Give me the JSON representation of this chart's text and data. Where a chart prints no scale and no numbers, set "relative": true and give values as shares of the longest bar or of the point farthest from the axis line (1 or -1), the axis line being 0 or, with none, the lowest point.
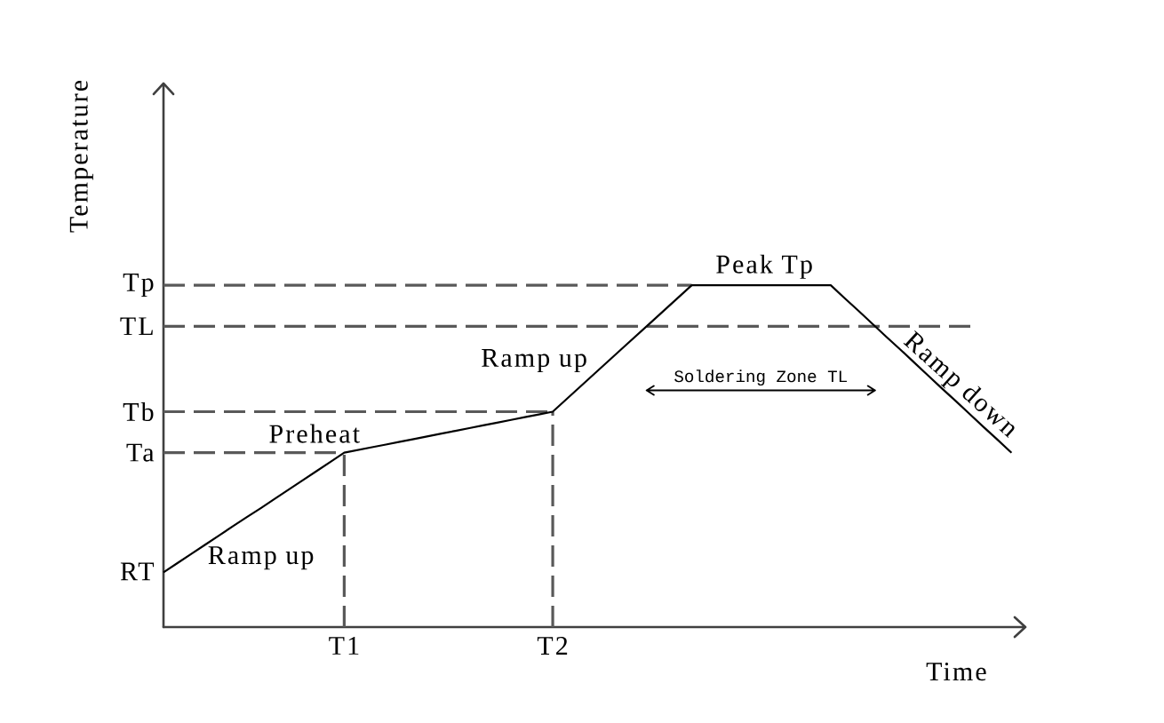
{
  "chart_data": {
    "type": "line",
    "relative": true,
    "xlabel": "Time",
    "ylabel": "Temperature",
    "categories": [
      null,
      null,
      null,
      null,
      null,
      null,
      null,
      null,
      null,
      null,
      null,
      null,
      null,
      "T1",
      null,
      null,
      null,
      null,
      null,
      null,
      null,
      null,
      null,
      null,
      null,
      null,
      null,
      null,
      "T2",
      null,
      null,
      null,
      null,
      null,
      null,
      null,
      null,
      null,
      null,
      null,
      null,
      null,
      null,
      null,
      null,
      null,
      null,
      null,
      null,
      null,
      null,
      null,
      null,
      null,
      null,
      null,
      null,
      null,
      null,
      null,
      null,
      null
    ],
    "series": [
      {
        "color": "#000000",
        "line_style": "solid",
        "values": [
          0.16,
          0.187,
          0.214,
          0.241,
          0.268,
          0.295,
          0.322,
          0.348,
          0.375,
          0.402,
          0.429,
          0.456,
          0.483,
          0.51,
          0.518,
          0.526,
          0.534,
          0.542,
          0.55,
          0.558,
          0.566,
          0.574,
          0.582,
          0.59,
          0.598,
          0.606,
          0.614,
          0.622,
          0.63,
          0.667,
          0.704,
          0.741,
          0.778,
          0.815,
          0.852,
          0.889,
          0.926,
          0.963,
          1,
          1,
          1,
          1,
          1,
          1,
          1,
          1,
          1,
          1,
          1,
          0.962,
          0.925,
          0.887,
          0.849,
          0.812,
          0.774,
          0.736,
          0.698,
          0.661,
          0.623,
          0.585,
          0.548,
          0.51
        ]
      }
    ],
    "ref_lines": [
      {
        "axis": "y",
        "value": 1,
        "label": "Tp",
        "color": "#595959",
        "line_style": "dashed"
      },
      {
        "axis": "y",
        "value": 0.88,
        "label": "TL",
        "color": "#595959",
        "line_style": "dashed"
      },
      {
        "axis": "y",
        "value": 0.63,
        "label": "Tb",
        "color": "#595959",
        "line_style": "dashed"
      },
      {
        "axis": "y",
        "value": 0.51,
        "label": "Ta",
        "color": "#595959",
        "line_style": "dashed"
      },
      {
        "axis": "x",
        "value": "T1",
        "color": "#595959",
        "line_style": "dashed"
      },
      {
        "axis": "x",
        "value": "T2",
        "color": "#595959",
        "line_style": "dashed"
      }
    ],
    "annotations": [
      "RT",
      "Ramp up",
      "Preheat",
      "Ramp up",
      "Peak Tp",
      "Ramp down",
      {
        "text": "Soldering Zone TL",
        "y": 0.88
      }
    ]
  }
}
